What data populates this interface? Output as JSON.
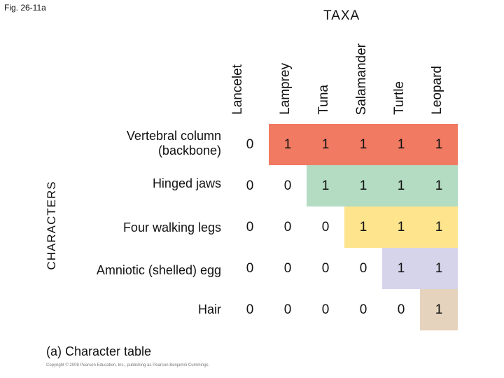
{
  "fig_label": "Fig. 26-11a",
  "taxa_title": "TAXA",
  "characters_title": "CHARACTERS",
  "taxa": [
    "Lancelet",
    "Lamprey",
    "Tuna",
    "Salamander",
    "Turtle",
    "Leopard"
  ],
  "characters": [
    {
      "label": "Vertebral column (backbone)",
      "values": [
        "0",
        "1",
        "1",
        "1",
        "1",
        "1"
      ],
      "color": "#f07a62"
    },
    {
      "label": "Hinged jaws",
      "values": [
        "0",
        "0",
        "1",
        "1",
        "1",
        "1"
      ],
      "color": "#b3dcc2"
    },
    {
      "label": "Four walking legs",
      "values": [
        "0",
        "0",
        "0",
        "1",
        "1",
        "1"
      ],
      "color": "#fde48d"
    },
    {
      "label": "Amniotic (shelled) egg",
      "values": [
        "0",
        "0",
        "0",
        "0",
        "1",
        "1"
      ],
      "color": "#d6d4ea"
    },
    {
      "label": "Hair",
      "values": [
        "0",
        "0",
        "0",
        "0",
        "0",
        "1"
      ],
      "color": "#e6d3bd"
    }
  ],
  "caption": "(a) Character table",
  "copyright": "Copyright © 2008 Pearson Education, Inc., publishing as Pearson Benjamin Cummings."
}
